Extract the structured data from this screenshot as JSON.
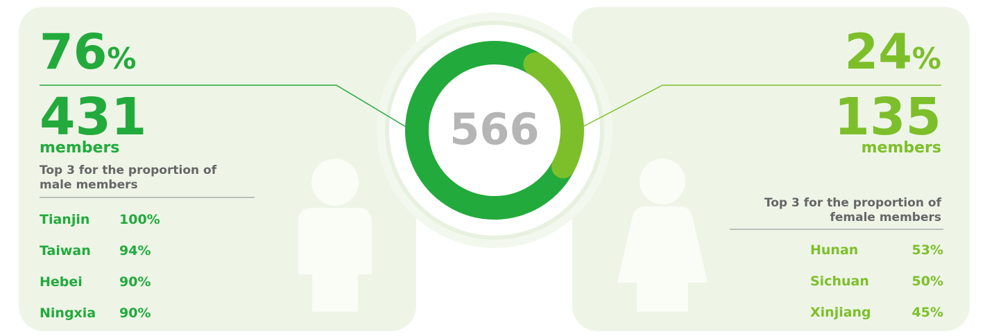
{
  "total": 566,
  "male": {
    "percent": 76,
    "percent_unit": "%",
    "count": 431,
    "count_unit": "members",
    "top_title": [
      "Top 3 for the proportion of",
      "male members"
    ],
    "top": [
      {
        "region": "Tianjin",
        "value": "100%"
      },
      {
        "region": "Taiwan",
        "value": "94%"
      },
      {
        "region": "Hebei",
        "value": "90%"
      },
      {
        "region": "Ningxia",
        "value": "90%"
      }
    ]
  },
  "female": {
    "percent": 24,
    "percent_unit": "%",
    "count": 135,
    "count_unit": "members",
    "top_title": [
      "Top 3 for the proportion of",
      "female members"
    ],
    "top": [
      {
        "region": "Hunan",
        "value": "53%"
      },
      {
        "region": "Sichuan",
        "value": "50%"
      },
      {
        "region": "Xinjiang",
        "value": "45%"
      }
    ]
  }
}
